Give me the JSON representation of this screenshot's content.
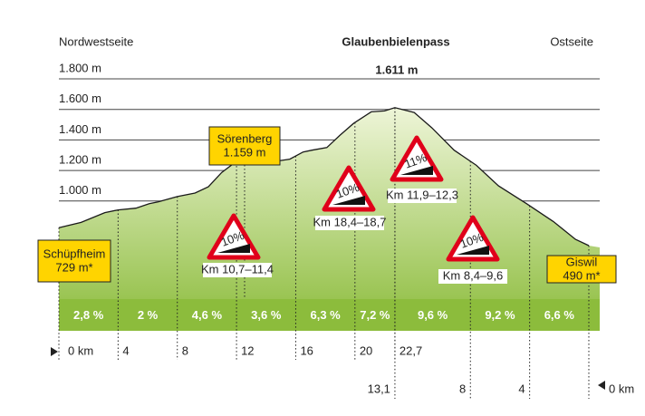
{
  "chart_data": {
    "type": "area",
    "title": "Glaubenbielenpass",
    "left_label": "Nordwestseite",
    "right_label": "Ostseite",
    "summit_label": "1.611 m",
    "x": [
      0,
      1.5,
      3.1,
      4.0,
      5.2,
      6.1,
      6.7,
      8.0,
      9.2,
      10.1,
      11.0,
      11.8,
      12.4,
      13.5,
      14.4,
      15.6,
      16.5,
      17.1,
      18.1,
      19.0,
      19.9,
      21.1,
      22.0,
      22.7,
      24.0,
      25.2,
      26.7,
      28.2,
      29.7,
      31.6,
      33.4,
      34.9,
      35.8
    ],
    "values": [
      825,
      860,
      924,
      942,
      953,
      982,
      994,
      1029,
      1052,
      1093,
      1187,
      1245,
      1269,
      1269,
      1257,
      1274,
      1321,
      1333,
      1350,
      1432,
      1508,
      1584,
      1590,
      1611,
      1580,
      1479,
      1333,
      1234,
      1099,
      982,
      866,
      749,
      708
    ],
    "color": "#8cbc3c",
    "ylim": [
      150,
      1800
    ],
    "yticks": [
      {
        "value": 1000,
        "label": "1.000 m"
      },
      {
        "value": 1200,
        "label": "1.200 m"
      },
      {
        "value": 1400,
        "label": "1.400 m"
      },
      {
        "value": 1600,
        "label": "1.600 m"
      },
      {
        "value": 1800,
        "label": "1.800 m"
      }
    ],
    "grid": true,
    "xlim": [
      0,
      35.8
    ],
    "xticks": [
      {
        "value": 0,
        "label": "0 km"
      },
      4,
      8,
      12,
      16,
      20,
      {
        "value": 22.7,
        "label": "22,7"
      }
    ],
    "x2lim": [
      35.8,
      0
    ],
    "x2ticks": [
      {
        "value": 13.1,
        "label": "13,1"
      },
      8,
      4,
      {
        "value": 0,
        "label": "0 km"
      }
    ],
    "gradient_labels": [
      "2,8 %",
      "2 %",
      "4,6 %",
      "3,6 %",
      "6,3 %",
      "7,2 %",
      "9,6 %",
      "9,2 %",
      "6,6 %"
    ],
    "places": [
      {
        "name": "Schüpfheim",
        "elevation": "729 m*"
      },
      {
        "name": "Sörenberg",
        "elevation": "1.159 m"
      },
      {
        "name": "Giswil",
        "elevation": "490 m*"
      }
    ],
    "warnings": [
      {
        "grade": "10%",
        "caption": "Km 10,7–11,4"
      },
      {
        "grade": "10%",
        "caption": "Km 18,4–18,7"
      },
      {
        "grade": "11%",
        "caption": "Km 11,9–12,3"
      },
      {
        "grade": "10%",
        "caption": "Km 8,4–9,6"
      }
    ]
  }
}
